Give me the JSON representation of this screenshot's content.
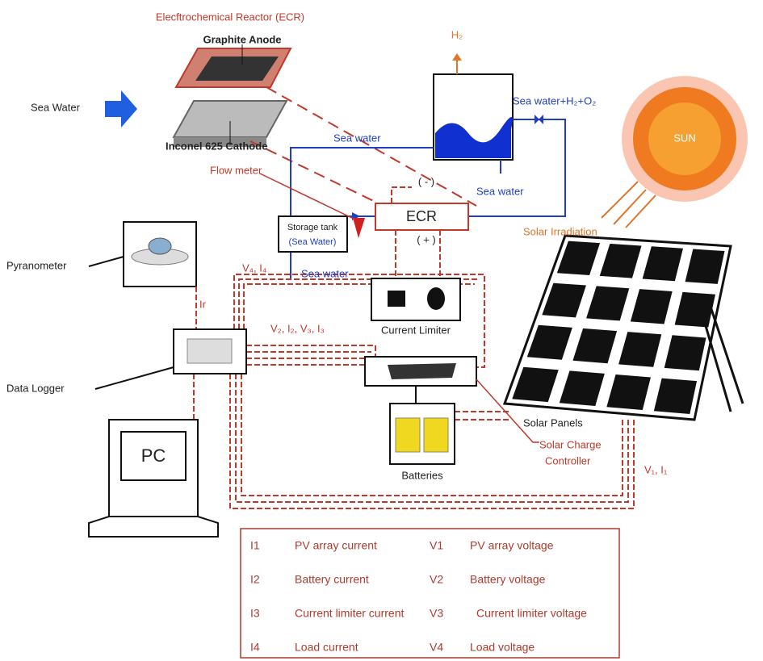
{
  "labels": {
    "ecr_title": "Elecftrochemical Reactor (ECR)",
    "graphite_anode": "Graphite Anode",
    "sea_water_input": "Sea Water",
    "cathode": "Inconel 625 Cathode",
    "h2": "H₂",
    "outlet": "Sea water+H₂+O₂",
    "sea_water_top": "Sea water",
    "sea_water_tank_out": "Sea water",
    "sea_water_storage_out": "Sea water",
    "flow_meter": "Flow meter",
    "ecr_minus": "( - )",
    "ecr": "ECR",
    "ecr_plus": "( + )",
    "storage_tank": "Storage tank",
    "storage_tank_sub": "(Sea Water)",
    "sun": "SUN",
    "solar_irradiation": "Solar Irradiation",
    "pyranometer": "Pyranometer",
    "ir": "Ir",
    "v4_i4": "V₄, I₄",
    "v2_i2_v3_i3": "V₂, I₂, V₃, I₃",
    "v1_i1": "V₁, I₁",
    "current_limiter": "Current Limiter",
    "data_logger": "Data Logger",
    "solar_panels": "Solar Panels",
    "solar_charge_controller": [
      "Solar Charge",
      "Controller"
    ],
    "batteries": "Batteries",
    "pc": "PC"
  },
  "legend_table": {
    "rows": [
      [
        "I1",
        "PV array current",
        "V1",
        "PV array voltage"
      ],
      [
        "I2",
        "Battery current",
        "V2",
        "Battery voltage"
      ],
      [
        "I3",
        "Current limiter current",
        "V3",
        "Current limiter voltage"
      ],
      [
        "I4",
        "Load current",
        "V4",
        "Load voltage"
      ]
    ]
  }
}
